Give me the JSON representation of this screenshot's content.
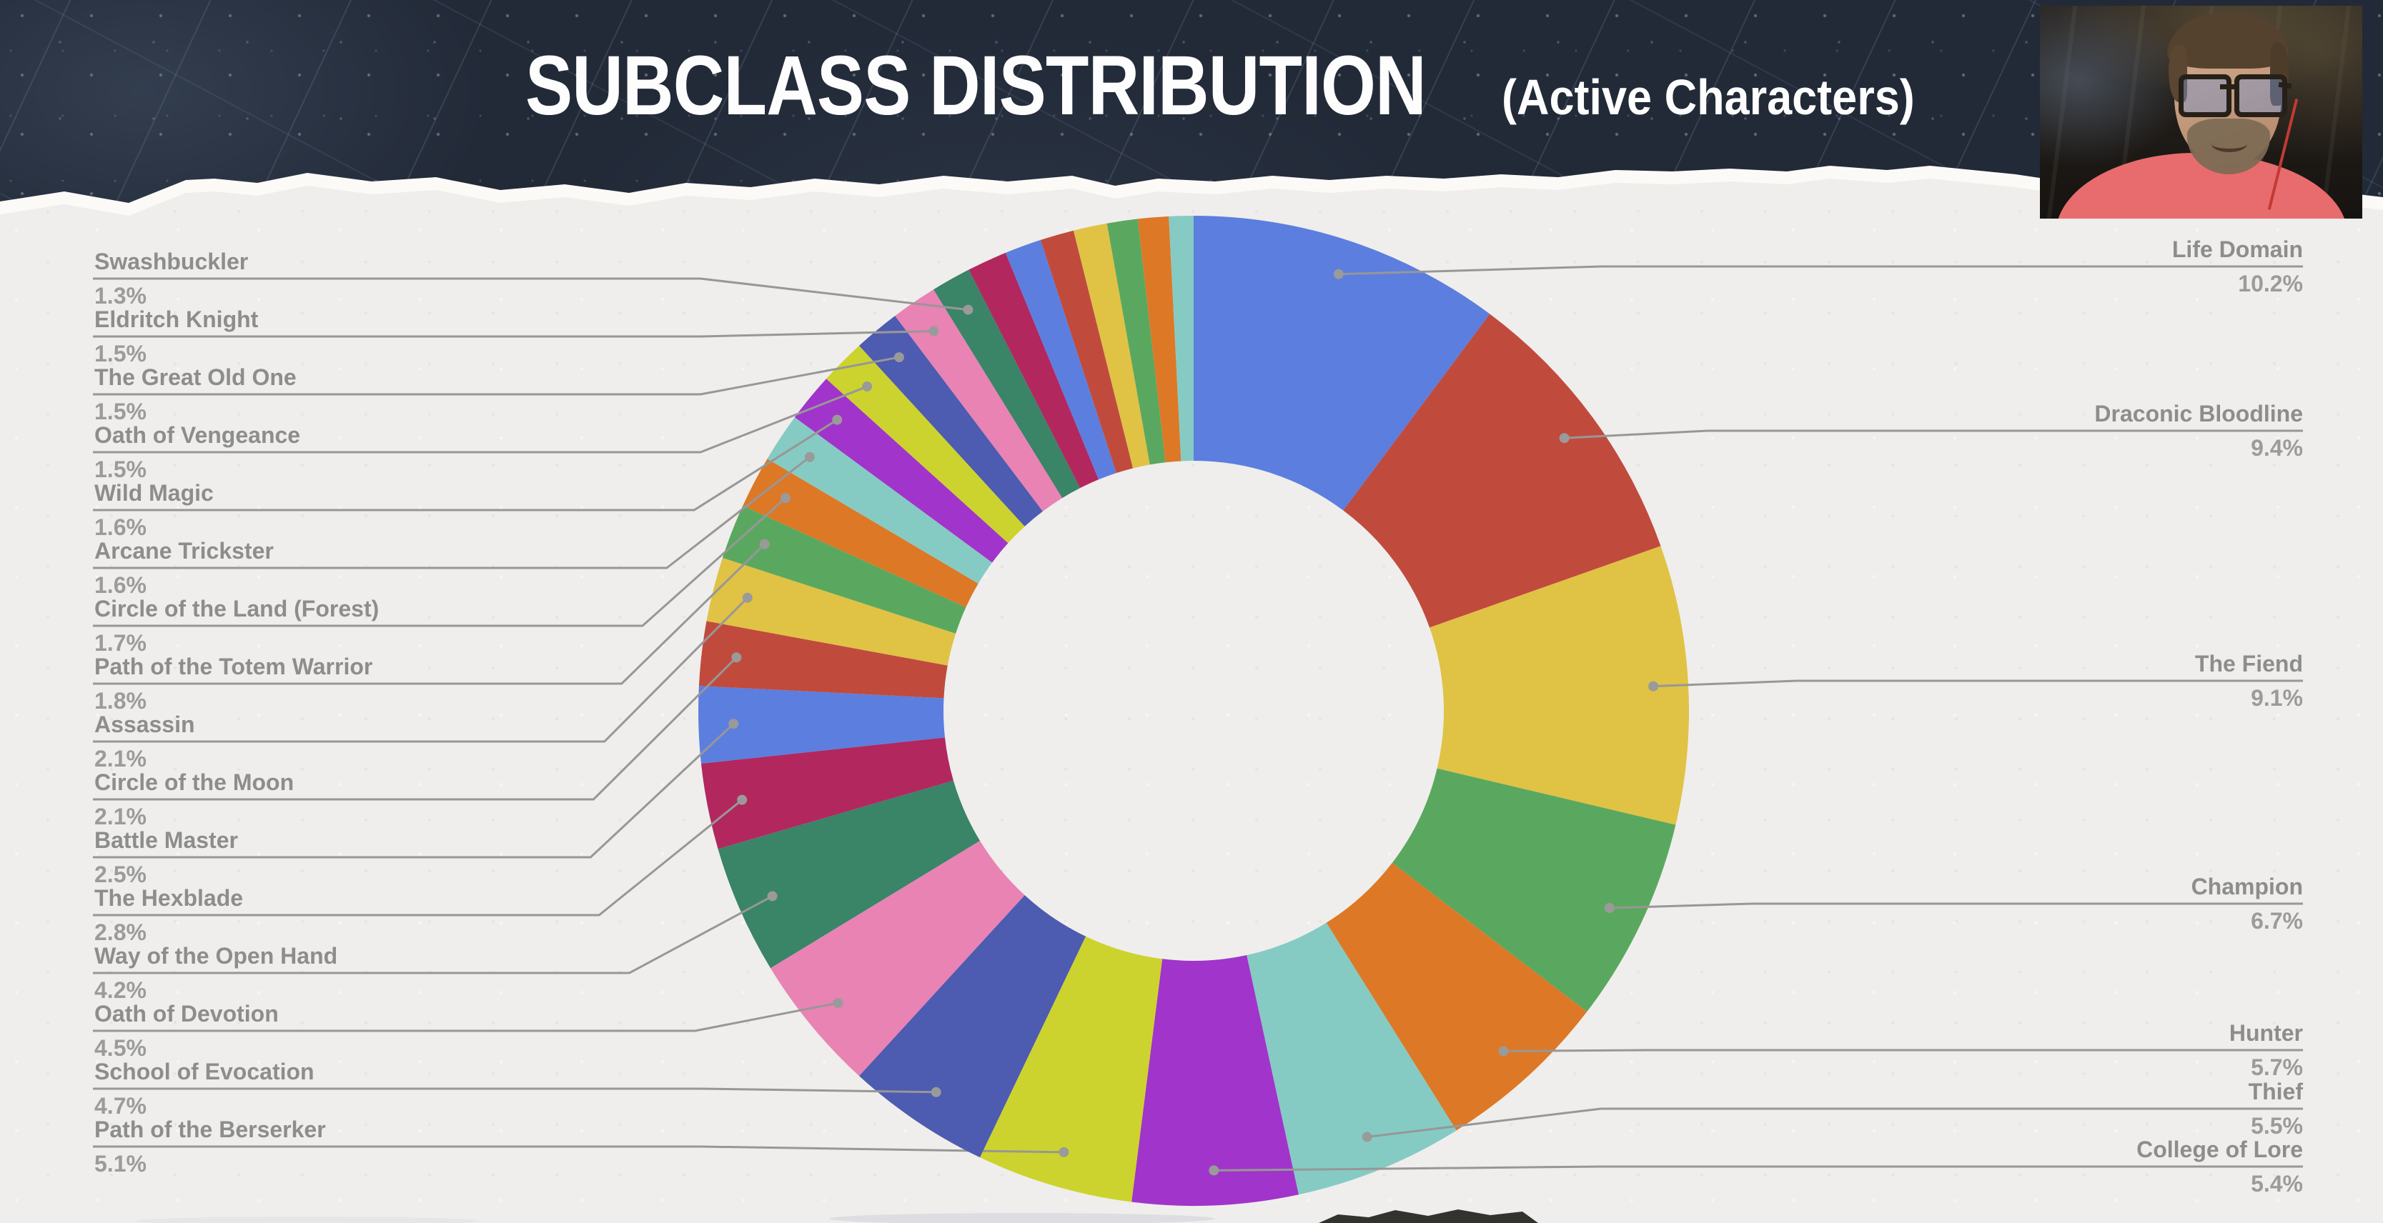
{
  "header": {
    "title": "SUBCLASS DISTRIBUTION",
    "subtitle": "(Active Characters)"
  },
  "webcam": {
    "description": "streamer-face-camera",
    "shirt_color": "#e86c6d"
  },
  "colors": {
    "paper": "#efeeec",
    "header_band": "#222a38",
    "label_text": "#8d8d8d",
    "label_pct_text": "#9b9b9b",
    "leader_line": "#979797",
    "leader_dot": "#9a9a9a",
    "title_text": "#fdfdfd"
  },
  "chart_data": {
    "type": "pie",
    "subtype": "donut",
    "title": "SUBCLASS DISTRIBUTION (Active Characters)",
    "hole_ratio": 0.505,
    "start_angle_deg": 0,
    "direction": "clockwise",
    "legend_position": "callout-labels",
    "note": "unlabeled minor slices estimated from arc lengths; labeled values read from callouts",
    "slices": [
      {
        "label": "Life Domain",
        "pct_display": "10.2%",
        "value": 10.2,
        "color": "#5c7edf",
        "callout": "right"
      },
      {
        "label": "Draconic Bloodline",
        "pct_display": "9.4%",
        "value": 9.4,
        "color": "#c04b3d",
        "callout": "right"
      },
      {
        "label": "The Fiend",
        "pct_display": "9.1%",
        "value": 9.1,
        "color": "#e0c245",
        "callout": "right"
      },
      {
        "label": "Champion",
        "pct_display": "6.7%",
        "value": 6.7,
        "color": "#5aa85f",
        "callout": "right"
      },
      {
        "label": "Hunter",
        "pct_display": "5.7%",
        "value": 5.7,
        "color": "#dd7827",
        "callout": "right"
      },
      {
        "label": "Thief",
        "pct_display": "5.5%",
        "value": 5.5,
        "color": "#85cbc3",
        "callout": "right"
      },
      {
        "label": "College of Lore",
        "pct_display": "5.4%",
        "value": 5.4,
        "color": "#a134cb",
        "callout": "right"
      },
      {
        "label": "Path of the Berserker",
        "pct_display": "5.1%",
        "value": 5.1,
        "color": "#ccd32e",
        "callout": "left"
      },
      {
        "label": "School of Evocation",
        "pct_display": "4.7%",
        "value": 4.7,
        "color": "#4d5bb0",
        "callout": "left"
      },
      {
        "label": "Oath of Devotion",
        "pct_display": "4.5%",
        "value": 4.5,
        "color": "#e883b4",
        "callout": "left"
      },
      {
        "label": "Way of the Open Hand",
        "pct_display": "4.2%",
        "value": 4.2,
        "color": "#3a8467",
        "callout": "left"
      },
      {
        "label": "The Hexblade",
        "pct_display": "2.8%",
        "value": 2.8,
        "color": "#b2275e",
        "callout": "left"
      },
      {
        "label": "Battle Master",
        "pct_display": "2.5%",
        "value": 2.5,
        "color": "#5c7edf",
        "callout": "left"
      },
      {
        "label": "Circle of the Moon",
        "pct_display": "2.1%",
        "value": 2.1,
        "color": "#c04b3d",
        "callout": "left"
      },
      {
        "label": "Assassin",
        "pct_display": "2.1%",
        "value": 2.1,
        "color": "#e0c245",
        "callout": "left"
      },
      {
        "label": "Path of the Totem Warrior",
        "pct_display": "1.8%",
        "value": 1.8,
        "color": "#5aa85f",
        "callout": "left"
      },
      {
        "label": "Circle of the Land (Forest)",
        "pct_display": "1.7%",
        "value": 1.7,
        "color": "#dd7827",
        "callout": "left"
      },
      {
        "label": "Arcane Trickster",
        "pct_display": "1.6%",
        "value": 1.6,
        "color": "#85cbc3",
        "callout": "left"
      },
      {
        "label": "Wild Magic",
        "pct_display": "1.6%",
        "value": 1.6,
        "color": "#a134cb",
        "callout": "left"
      },
      {
        "label": "Oath of Vengeance",
        "pct_display": "1.5%",
        "value": 1.5,
        "color": "#ccd32e",
        "callout": "left"
      },
      {
        "label": "The Great Old One",
        "pct_display": "1.5%",
        "value": 1.5,
        "color": "#4d5bb0",
        "callout": "left"
      },
      {
        "label": "Eldritch Knight",
        "pct_display": "1.5%",
        "value": 1.5,
        "color": "#e883b4",
        "callout": "left"
      },
      {
        "label": "Swashbuckler",
        "pct_display": "1.3%",
        "value": 1.3,
        "color": "#3a8467",
        "callout": "left"
      },
      {
        "label": null,
        "pct_display": null,
        "value": 1.3,
        "color": "#b2275e",
        "callout": null
      },
      {
        "label": null,
        "pct_display": null,
        "value": 1.2,
        "color": "#5c7edf",
        "callout": null
      },
      {
        "label": null,
        "pct_display": null,
        "value": 1.1,
        "color": "#c04b3d",
        "callout": null
      },
      {
        "label": null,
        "pct_display": null,
        "value": 1.1,
        "color": "#e0c245",
        "callout": null
      },
      {
        "label": null,
        "pct_display": null,
        "value": 1.0,
        "color": "#5aa85f",
        "callout": null
      },
      {
        "label": null,
        "pct_display": null,
        "value": 1.0,
        "color": "#dd7827",
        "callout": null
      },
      {
        "label": null,
        "pct_display": null,
        "value": 0.8,
        "color": "#85cbc3",
        "callout": null
      }
    ]
  }
}
